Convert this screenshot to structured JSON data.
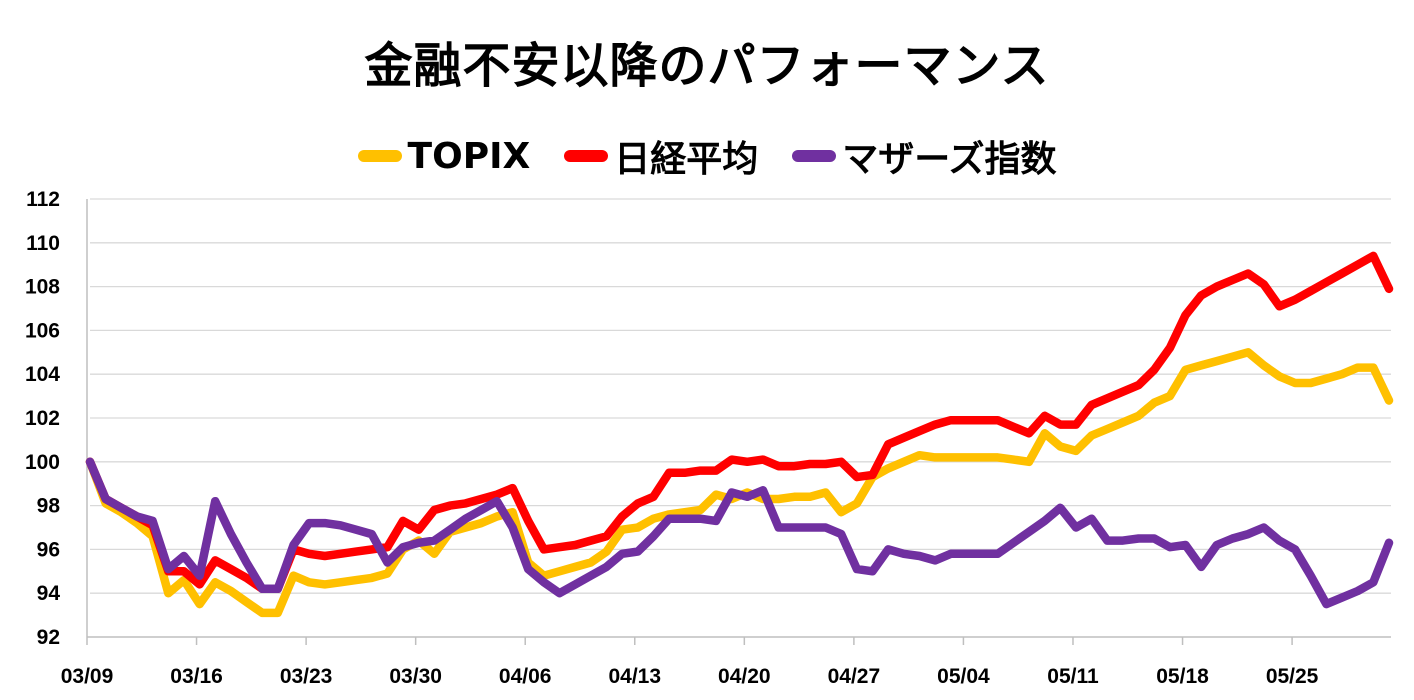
{
  "chart_data": {
    "type": "line",
    "title": "金融不安以降のパフォーマンス",
    "xlabel": "",
    "ylabel": "",
    "ylim": [
      92,
      112
    ],
    "y_ticks": [
      92,
      94,
      96,
      98,
      100,
      102,
      104,
      106,
      108,
      110,
      112
    ],
    "x_tick_labels": [
      "03/09",
      "03/16",
      "03/23",
      "03/30",
      "04/06",
      "04/13",
      "04/20",
      "04/27",
      "05/04",
      "05/11",
      "05/18",
      "05/25"
    ],
    "x_range": [
      0,
      83
    ],
    "x_tick_positions": [
      0,
      7,
      14,
      21,
      28,
      35,
      42,
      49,
      56,
      63,
      70,
      77
    ],
    "grid": "horizontal",
    "legend_position": "top",
    "series": [
      {
        "name": "TOPIX",
        "color": "#FFC000",
        "points": [
          [
            0,
            100
          ],
          [
            1,
            98.1
          ],
          [
            2,
            97.7
          ],
          [
            3,
            97.2
          ],
          [
            4,
            96.6
          ],
          [
            5,
            94.0
          ],
          [
            6,
            94.6
          ],
          [
            7,
            93.5
          ],
          [
            8,
            94.5
          ],
          [
            9,
            94.1
          ],
          [
            10,
            93.6
          ],
          [
            11,
            93.1
          ],
          [
            12,
            93.1
          ],
          [
            13,
            94.8
          ],
          [
            14,
            94.5
          ],
          [
            15,
            94.4
          ],
          [
            16,
            94.5
          ],
          [
            17,
            94.6
          ],
          [
            18,
            94.7
          ],
          [
            19,
            94.9
          ],
          [
            20,
            96.0
          ],
          [
            21,
            96.4
          ],
          [
            22,
            95.8
          ],
          [
            23,
            96.8
          ],
          [
            24,
            97.0
          ],
          [
            25,
            97.2
          ],
          [
            26,
            97.5
          ],
          [
            27,
            97.7
          ],
          [
            28,
            95.4
          ],
          [
            29,
            94.8
          ],
          [
            30,
            95.0
          ],
          [
            31,
            95.2
          ],
          [
            32,
            95.4
          ],
          [
            33,
            95.9
          ],
          [
            34,
            96.9
          ],
          [
            35,
            97.0
          ],
          [
            36,
            97.4
          ],
          [
            37,
            97.6
          ],
          [
            38,
            97.7
          ],
          [
            39,
            97.8
          ],
          [
            40,
            98.5
          ],
          [
            41,
            98.3
          ],
          [
            42,
            98.6
          ],
          [
            43,
            98.3
          ],
          [
            44,
            98.3
          ],
          [
            45,
            98.4
          ],
          [
            46,
            98.4
          ],
          [
            47,
            98.6
          ],
          [
            48,
            97.7
          ],
          [
            49,
            98.1
          ],
          [
            50,
            99.3
          ],
          [
            51,
            99.7
          ],
          [
            52,
            100.0
          ],
          [
            53,
            100.3
          ],
          [
            54,
            100.2
          ],
          [
            55,
            100.2
          ],
          [
            56,
            100.2
          ],
          [
            57,
            100.2
          ],
          [
            58,
            100.2
          ],
          [
            59,
            100.1
          ],
          [
            60,
            100.0
          ],
          [
            61,
            101.3
          ],
          [
            62,
            100.7
          ],
          [
            63,
            100.5
          ],
          [
            64,
            101.2
          ],
          [
            65,
            101.5
          ],
          [
            66,
            101.8
          ],
          [
            67,
            102.1
          ],
          [
            68,
            102.7
          ],
          [
            69,
            103.0
          ],
          [
            70,
            104.2
          ],
          [
            71,
            104.4
          ],
          [
            72,
            104.6
          ],
          [
            73,
            104.8
          ],
          [
            74,
            105.0
          ],
          [
            75,
            104.4
          ],
          [
            76,
            103.9
          ],
          [
            77,
            103.6
          ],
          [
            78,
            103.6
          ],
          [
            79,
            103.8
          ],
          [
            80,
            104.0
          ],
          [
            81,
            104.3
          ],
          [
            82,
            104.3
          ],
          [
            83,
            102.8
          ]
        ]
      },
      {
        "name": "日経平均",
        "color": "#FF0000",
        "points": [
          [
            0,
            100
          ],
          [
            1,
            98.3
          ],
          [
            2,
            97.9
          ],
          [
            3,
            97.5
          ],
          [
            4,
            97.1
          ],
          [
            5,
            95.0
          ],
          [
            6,
            95.0
          ],
          [
            7,
            94.4
          ],
          [
            8,
            95.5
          ],
          [
            9,
            95.1
          ],
          [
            10,
            94.7
          ],
          [
            11,
            94.2
          ],
          [
            12,
            94.2
          ],
          [
            13,
            96.0
          ],
          [
            14,
            95.8
          ],
          [
            15,
            95.7
          ],
          [
            16,
            95.8
          ],
          [
            17,
            95.9
          ],
          [
            18,
            96.0
          ],
          [
            19,
            96.1
          ],
          [
            20,
            97.3
          ],
          [
            21,
            96.9
          ],
          [
            22,
            97.8
          ],
          [
            23,
            98.0
          ],
          [
            24,
            98.1
          ],
          [
            25,
            98.3
          ],
          [
            26,
            98.5
          ],
          [
            27,
            98.8
          ],
          [
            28,
            97.3
          ],
          [
            29,
            96.0
          ],
          [
            30,
            96.1
          ],
          [
            31,
            96.2
          ],
          [
            32,
            96.4
          ],
          [
            33,
            96.6
          ],
          [
            34,
            97.5
          ],
          [
            35,
            98.1
          ],
          [
            36,
            98.4
          ],
          [
            37,
            99.5
          ],
          [
            38,
            99.5
          ],
          [
            39,
            99.6
          ],
          [
            40,
            99.6
          ],
          [
            41,
            100.1
          ],
          [
            42,
            100.0
          ],
          [
            43,
            100.1
          ],
          [
            44,
            99.8
          ],
          [
            45,
            99.8
          ],
          [
            46,
            99.9
          ],
          [
            47,
            99.9
          ],
          [
            48,
            100.0
          ],
          [
            49,
            99.3
          ],
          [
            50,
            99.4
          ],
          [
            51,
            100.8
          ],
          [
            52,
            101.1
          ],
          [
            53,
            101.4
          ],
          [
            54,
            101.7
          ],
          [
            55,
            101.9
          ],
          [
            56,
            101.9
          ],
          [
            57,
            101.9
          ],
          [
            58,
            101.9
          ],
          [
            59,
            101.6
          ],
          [
            60,
            101.3
          ],
          [
            61,
            102.1
          ],
          [
            62,
            101.7
          ],
          [
            63,
            101.7
          ],
          [
            64,
            102.6
          ],
          [
            65,
            102.9
          ],
          [
            66,
            103.2
          ],
          [
            67,
            103.5
          ],
          [
            68,
            104.2
          ],
          [
            69,
            105.2
          ],
          [
            70,
            106.7
          ],
          [
            71,
            107.6
          ],
          [
            72,
            108.0
          ],
          [
            73,
            108.3
          ],
          [
            74,
            108.6
          ],
          [
            75,
            108.1
          ],
          [
            76,
            107.1
          ],
          [
            77,
            107.4
          ],
          [
            78,
            107.8
          ],
          [
            79,
            108.2
          ],
          [
            80,
            108.6
          ],
          [
            81,
            109.0
          ],
          [
            82,
            109.4
          ],
          [
            83,
            107.9
          ]
        ]
      },
      {
        "name": "マザーズ指数",
        "color": "#7030A0",
        "points": [
          [
            0,
            100
          ],
          [
            1,
            98.3
          ],
          [
            2,
            97.9
          ],
          [
            3,
            97.5
          ],
          [
            4,
            97.3
          ],
          [
            5,
            95.1
          ],
          [
            6,
            95.7
          ],
          [
            7,
            94.8
          ],
          [
            8,
            98.2
          ],
          [
            9,
            96.7
          ],
          [
            10,
            95.4
          ],
          [
            11,
            94.2
          ],
          [
            12,
            94.2
          ],
          [
            13,
            96.2
          ],
          [
            14,
            97.2
          ],
          [
            15,
            97.2
          ],
          [
            16,
            97.1
          ],
          [
            17,
            96.9
          ],
          [
            18,
            96.7
          ],
          [
            19,
            95.4
          ],
          [
            20,
            96.1
          ],
          [
            21,
            96.3
          ],
          [
            22,
            96.4
          ],
          [
            23,
            96.9
          ],
          [
            24,
            97.4
          ],
          [
            25,
            97.8
          ],
          [
            26,
            98.2
          ],
          [
            27,
            97.0
          ],
          [
            28,
            95.1
          ],
          [
            29,
            94.5
          ],
          [
            30,
            94.0
          ],
          [
            31,
            94.4
          ],
          [
            32,
            94.8
          ],
          [
            33,
            95.2
          ],
          [
            34,
            95.8
          ],
          [
            35,
            95.9
          ],
          [
            36,
            96.6
          ],
          [
            37,
            97.4
          ],
          [
            38,
            97.4
          ],
          [
            39,
            97.4
          ],
          [
            40,
            97.3
          ],
          [
            41,
            98.6
          ],
          [
            42,
            98.4
          ],
          [
            43,
            98.7
          ],
          [
            44,
            97.0
          ],
          [
            45,
            97.0
          ],
          [
            46,
            97.0
          ],
          [
            47,
            97.0
          ],
          [
            48,
            96.7
          ],
          [
            49,
            95.1
          ],
          [
            50,
            95.0
          ],
          [
            51,
            96.0
          ],
          [
            52,
            95.8
          ],
          [
            53,
            95.7
          ],
          [
            54,
            95.5
          ],
          [
            55,
            95.8
          ],
          [
            56,
            95.8
          ],
          [
            57,
            95.8
          ],
          [
            58,
            95.8
          ],
          [
            59,
            96.3
          ],
          [
            60,
            96.8
          ],
          [
            61,
            97.3
          ],
          [
            62,
            97.9
          ],
          [
            63,
            97.0
          ],
          [
            64,
            97.4
          ],
          [
            65,
            96.4
          ],
          [
            66,
            96.4
          ],
          [
            67,
            96.5
          ],
          [
            68,
            96.5
          ],
          [
            69,
            96.1
          ],
          [
            70,
            96.2
          ],
          [
            71,
            95.2
          ],
          [
            72,
            96.2
          ],
          [
            73,
            96.5
          ],
          [
            74,
            96.7
          ],
          [
            75,
            97.0
          ],
          [
            76,
            96.4
          ],
          [
            77,
            96.0
          ],
          [
            78,
            94.8
          ],
          [
            79,
            93.5
          ],
          [
            80,
            93.8
          ],
          [
            81,
            94.1
          ],
          [
            82,
            94.5
          ],
          [
            83,
            96.3
          ]
        ]
      }
    ]
  }
}
